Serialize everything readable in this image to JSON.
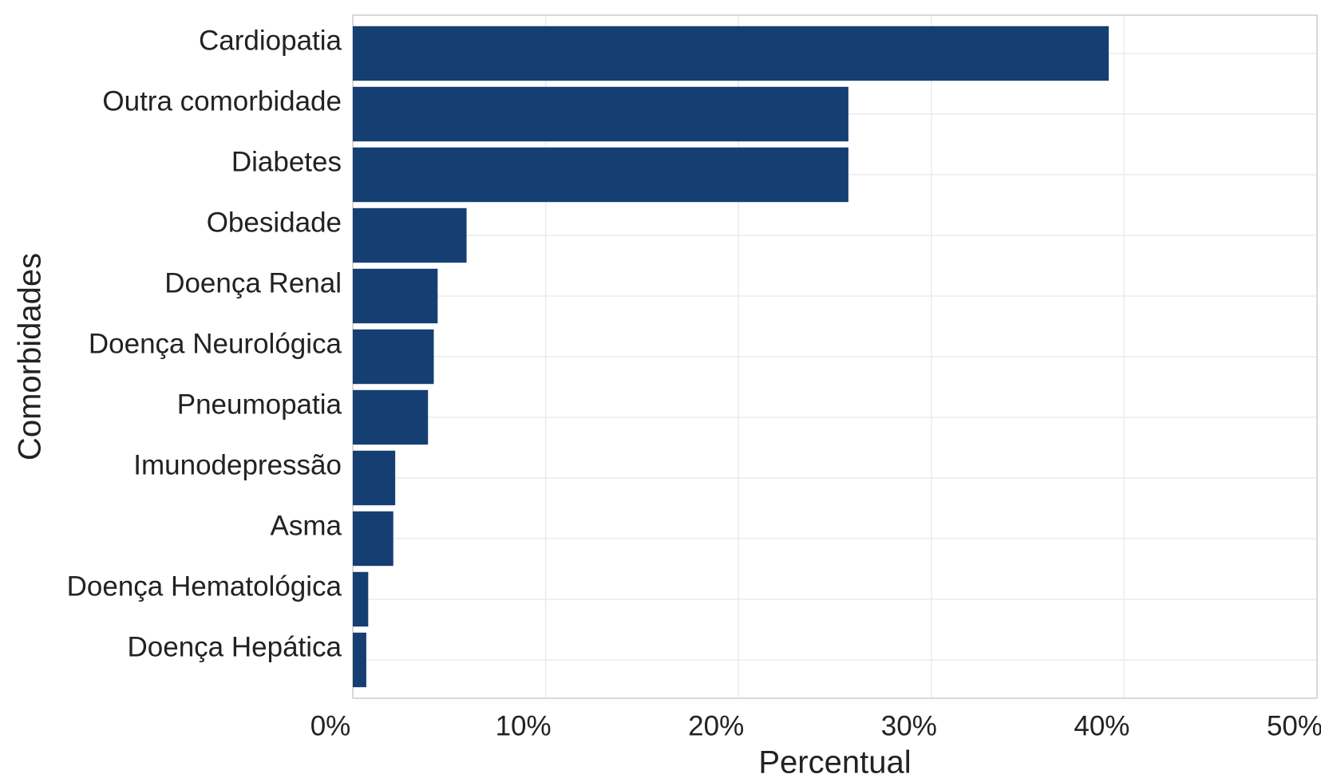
{
  "chart_data": {
    "type": "bar",
    "orientation": "horizontal",
    "categories": [
      "Cardiopatia",
      "Outra comorbidade",
      "Diabetes",
      "Obesidade",
      "Doença Renal",
      "Doença Neurológica",
      "Pneumopatia",
      "Imunodepressão",
      "Asma",
      "Doença Hematológica",
      "Doença Hepática"
    ],
    "values": [
      39.2,
      25.7,
      25.7,
      5.9,
      4.4,
      4.2,
      3.9,
      2.2,
      2.1,
      0.8,
      0.7
    ],
    "color": "#153f73",
    "xlim": [
      0,
      50
    ],
    "xticks": [
      {
        "value": 0,
        "label": "0%"
      },
      {
        "value": 10,
        "label": "10%"
      },
      {
        "value": 20,
        "label": "20%"
      },
      {
        "value": 30,
        "label": "30%"
      },
      {
        "value": 40,
        "label": "40%"
      },
      {
        "value": 50,
        "label": "50%"
      }
    ],
    "xlabel": "Percentual",
    "ylabel": "Comorbidades",
    "grid": true
  }
}
